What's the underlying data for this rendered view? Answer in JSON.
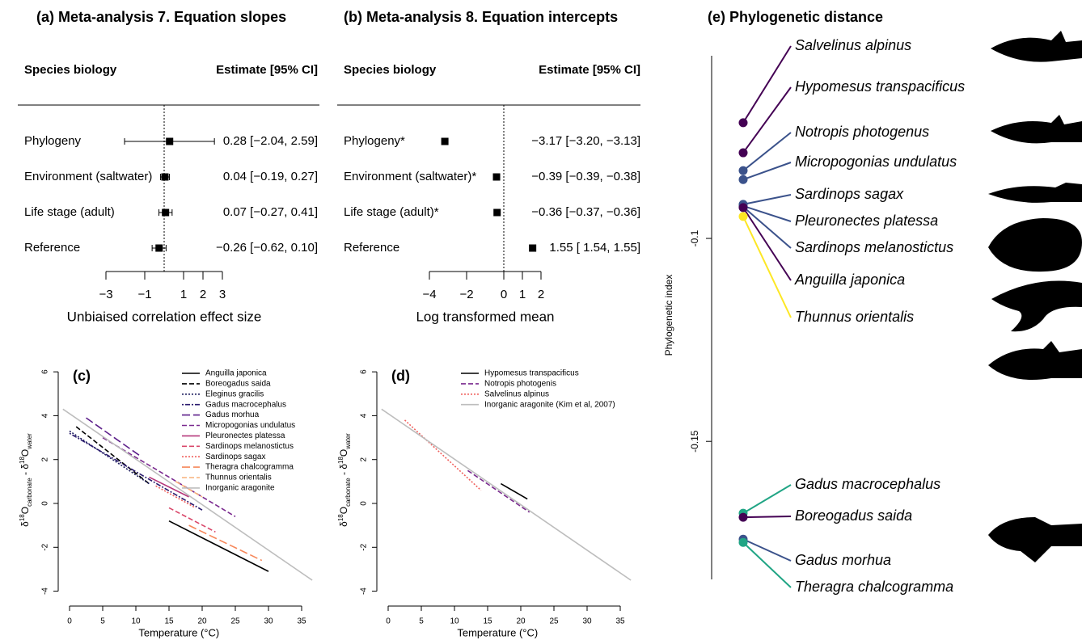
{
  "chart_data": [
    {
      "type": "forest",
      "title": "(a) Meta-analysis 7. Equation slopes",
      "column_headers": [
        "Species biology",
        "Estimate [95% CI]"
      ],
      "categories": [
        "Phylogeny",
        "Environment (saltwater)",
        "Life stage (adult)",
        "Reference"
      ],
      "values": [
        0.28,
        0.04,
        0.07,
        -0.26
      ],
      "lower": [
        -2.04,
        -0.19,
        -0.27,
        -0.62
      ],
      "upper": [
        2.59,
        0.27,
        0.41,
        0.1
      ],
      "value_labels": [
        "0.28 [−2.04, 2.59]",
        "0.04 [−0.19, 0.27]",
        "0.07 [−0.27, 0.41]",
        "−0.26 [−0.62, 0.10]"
      ],
      "xlabel": "Unbiaised correlation effect size",
      "xlim": [
        -3,
        3
      ],
      "xticks": [
        {
          "value": -3,
          "label": "−3"
        },
        {
          "value": -1,
          "label": "−1"
        },
        1,
        2,
        3
      ],
      "color": "#000000"
    },
    {
      "type": "forest",
      "title": "(b) Meta-analysis 8. Equation intercepts",
      "column_headers": [
        "Species biology",
        "Estimate [95% CI]"
      ],
      "categories": [
        "Phylogeny*",
        "Environment (saltwater)*",
        "Life stage (adult)*",
        "Reference"
      ],
      "values": [
        -3.17,
        -0.39,
        -0.36,
        1.55
      ],
      "lower": [
        -3.2,
        -0.39,
        -0.37,
        1.54
      ],
      "upper": [
        -3.13,
        -0.38,
        -0.36,
        1.55
      ],
      "value_labels": [
        "−3.17 [−3.20, −3.13]",
        "−0.39 [−0.39, −0.38]",
        "−0.36 [−0.37, −0.36]",
        "1.55 [ 1.54,  1.55]"
      ],
      "xlabel": "Log transformed mean",
      "xlim": [
        -4,
        2
      ],
      "xticks": [
        {
          "value": -4,
          "label": "−4"
        },
        {
          "value": -2,
          "label": "−2"
        },
        0,
        1,
        2
      ],
      "color": "#000000"
    },
    {
      "type": "line",
      "title": "(c)",
      "ylabel_parts": [
        "δ",
        "18",
        "O",
        "carbonate",
        " - δ",
        "18",
        "O",
        "water"
      ],
      "xlabel": "Temperature (°C)",
      "xlim": [
        -1.5,
        37
      ],
      "ylim": [
        -4.2,
        6.3
      ],
      "xticks": [
        0,
        5,
        10,
        15,
        20,
        25,
        30,
        35
      ],
      "yticks": [
        -4,
        -2,
        0,
        2,
        4,
        6
      ],
      "series": [
        {
          "name": "Anguilla japonica",
          "color": "#000000",
          "dash": "solid",
          "x": [
            15,
            30
          ],
          "values": [
            -0.8,
            -3.1
          ]
        },
        {
          "name": "Boreogadus saida",
          "color": "#000000",
          "dash": "dashed",
          "x": [
            1,
            12
          ],
          "values": [
            3.5,
            0.9
          ]
        },
        {
          "name": "Eleginus gracilis",
          "color": "#1b1b5e",
          "dash": "dotted",
          "x": [
            0,
            12
          ],
          "values": [
            3.3,
            0.9
          ]
        },
        {
          "name": "Gadus macrocephalus",
          "color": "#2a1a6e",
          "dash": "dotdash",
          "x": [
            0,
            20
          ],
          "values": [
            3.2,
            -0.3
          ]
        },
        {
          "name": "Gadus morhua",
          "color": "#5c1f8a",
          "dash": "longdash",
          "x": [
            2.5,
            10.5
          ],
          "values": [
            3.9,
            2.2
          ]
        },
        {
          "name": "Micropogonias undulatus",
          "color": "#7a2a8f",
          "dash": "dashed",
          "x": [
            5,
            25
          ],
          "values": [
            3.0,
            -0.6
          ]
        },
        {
          "name": "Pleuronectes platessa",
          "color": "#b5367a",
          "dash": "solid",
          "x": [
            12,
            18
          ],
          "values": [
            1.2,
            0.3
          ]
        },
        {
          "name": "Sardinops melanostictus",
          "color": "#d9476a",
          "dash": "dashed",
          "x": [
            15,
            22
          ],
          "values": [
            -0.2,
            -1.3
          ]
        },
        {
          "name": "Sardinops sagax",
          "color": "#f0605d",
          "dash": "dotted",
          "x": [
            13,
            19
          ],
          "values": [
            0.8,
            -0.2
          ]
        },
        {
          "name": "Theragra chalcogramma",
          "color": "#f6875a",
          "dash": "longdash",
          "x": [
            18,
            29
          ],
          "values": [
            -1.0,
            -2.6
          ]
        },
        {
          "name": "Thunnus orientalis",
          "color": "#f9b17a",
          "dash": "dashed",
          "x": [
            16,
            20
          ],
          "values": [
            1.0,
            0.3
          ]
        },
        {
          "name": "Inorganic aragonite",
          "color": "#bdbdbd",
          "dash": "solid",
          "x": [
            -1,
            36.6
          ],
          "values": [
            4.3,
            -3.5
          ]
        }
      ]
    },
    {
      "type": "line",
      "title": "(d)",
      "ylabel_parts": [
        "δ",
        "18",
        "O",
        "carbonate",
        " - δ",
        "18",
        "O",
        "water"
      ],
      "xlabel": "Temperature (°C)",
      "xlim": [
        -1.5,
        37
      ],
      "ylim": [
        -4.2,
        6.3
      ],
      "xticks": [
        0,
        5,
        10,
        15,
        20,
        25,
        30,
        35
      ],
      "yticks": [
        -4,
        -2,
        0,
        2,
        4,
        6
      ],
      "series": [
        {
          "name": "Hypomesus transpacificus",
          "color": "#000000",
          "dash": "solid",
          "x": [
            17,
            21
          ],
          "values": [
            0.9,
            0.2
          ]
        },
        {
          "name": "Notropis photogenis",
          "color": "#7a2a8f",
          "dash": "dashed",
          "x": [
            12,
            21.3
          ],
          "values": [
            1.5,
            -0.4
          ]
        },
        {
          "name": "Salvelinus alpinus",
          "color": "#f0605d",
          "dash": "dotted",
          "x": [
            2.5,
            14
          ],
          "values": [
            3.8,
            0.6
          ]
        },
        {
          "name": "Inorganic aragonite (Kim et al, 2007)",
          "color": "#bdbdbd",
          "dash": "solid",
          "x": [
            -1,
            36.6
          ],
          "values": [
            4.3,
            -3.5
          ]
        }
      ]
    },
    {
      "type": "phylo",
      "title": "(e) Phylogenetic distance",
      "ylabel": "Phylogenetic index",
      "ylim": [
        -0.184,
        -0.055
      ],
      "yticks": [
        -0.1,
        -0.15
      ],
      "categories": [
        "Salvelinus alpinus",
        "Hypomesus transpacificus",
        "Notropis photogenus",
        "Micropogonias undulatus",
        "Sardinops sagax",
        "Pleuronectes platessa",
        "Sardinops melanostictus",
        "Anguilla japonica",
        "Thunnus orientalis",
        "Gadus macrocephalus",
        "Boreogadus saida",
        "Gadus morhua",
        "Theragra chalcogramma"
      ],
      "values": [
        -0.0715,
        -0.0789,
        -0.0833,
        -0.0855,
        -0.0916,
        -0.092,
        -0.0922,
        -0.0924,
        -0.0946,
        -0.1677,
        -0.1687,
        -0.1741,
        -0.1749
      ],
      "colors": [
        "#440154",
        "#440154",
        "#3b528b",
        "#3b528b",
        "#3b528b",
        "#3b528b",
        "#3b528b",
        "#440154",
        "#fde725",
        "#21a585",
        "#440154",
        "#3b528b",
        "#21a585"
      ]
    }
  ]
}
